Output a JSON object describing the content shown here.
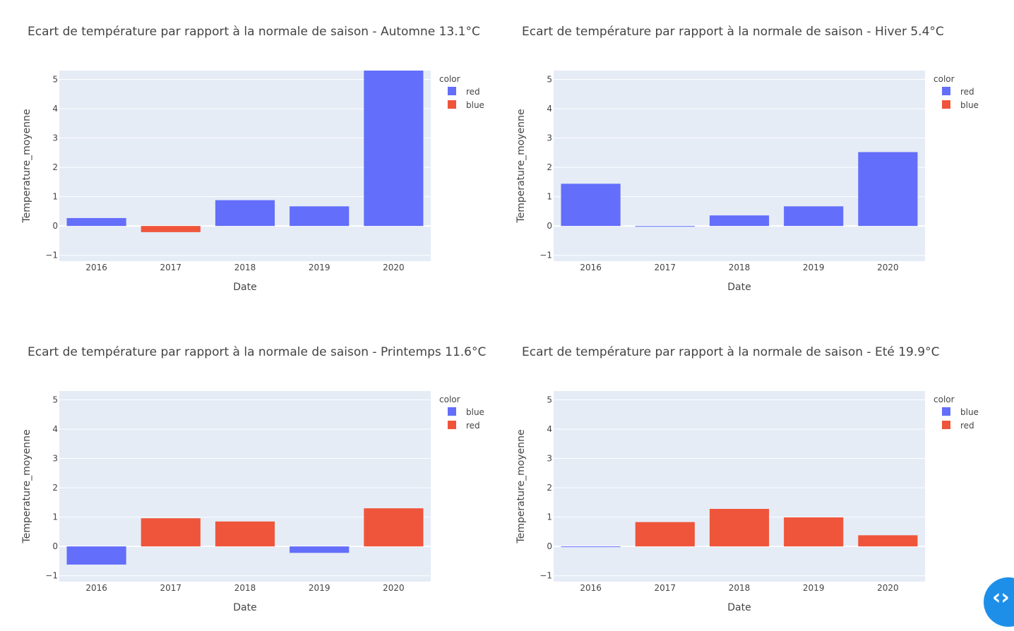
{
  "colors": {
    "plot_bg": "#e5ecf6",
    "grid": "#ffffff",
    "text": "#444444",
    "blue": "#636efa",
    "red": "#ef553b",
    "code_button": "#1e8fe8"
  },
  "chart_data": [
    {
      "type": "bar",
      "title": "Ecart de température par rapport à la normale de saison - Automne 13.1°C",
      "xlabel": "Date",
      "ylabel": "Temperature_moyenne",
      "categories": [
        "2016",
        "2017",
        "2018",
        "2019",
        "2020"
      ],
      "values": [
        0.27,
        -0.21,
        0.88,
        0.67,
        5.3
      ],
      "bar_colors": [
        "blue",
        "red",
        "blue",
        "blue",
        "blue"
      ],
      "ylim": [
        -1.2,
        5.3
      ],
      "yticks": [
        "−1",
        "0",
        "1",
        "2",
        "3",
        "4",
        "5"
      ],
      "legend_title": "color",
      "legend": [
        {
          "label": "red",
          "color": "blue"
        },
        {
          "label": "blue",
          "color": "red"
        }
      ],
      "legend_position": "top-right",
      "grid": true
    },
    {
      "type": "bar",
      "title": "Ecart de température par rapport à la normale de saison - Hiver 5.4°C",
      "xlabel": "Date",
      "ylabel": "Temperature_moyenne",
      "categories": [
        "2016",
        "2017",
        "2018",
        "2019",
        "2020"
      ],
      "values": [
        1.44,
        -0.02,
        0.36,
        0.67,
        2.52
      ],
      "bar_colors": [
        "blue",
        "blue",
        "blue",
        "blue",
        "blue"
      ],
      "ylim": [
        -1.2,
        5.3
      ],
      "yticks": [
        "−1",
        "0",
        "1",
        "2",
        "3",
        "4",
        "5"
      ],
      "legend_title": "color",
      "legend": [
        {
          "label": "red",
          "color": "blue"
        },
        {
          "label": "blue",
          "color": "red"
        }
      ],
      "legend_position": "top-right",
      "grid": true
    },
    {
      "type": "bar",
      "title": "Ecart de température par rapport à la normale de saison - Printemps 11.6°C",
      "xlabel": "Date",
      "ylabel": "Temperature_moyenne",
      "categories": [
        "2016",
        "2017",
        "2018",
        "2019",
        "2020"
      ],
      "values": [
        -0.62,
        0.96,
        0.85,
        -0.22,
        1.3
      ],
      "bar_colors": [
        "blue",
        "red",
        "red",
        "blue",
        "red"
      ],
      "ylim": [
        -1.2,
        5.3
      ],
      "yticks": [
        "−1",
        "0",
        "1",
        "2",
        "3",
        "4",
        "5"
      ],
      "legend_title": "color",
      "legend": [
        {
          "label": "blue",
          "color": "blue"
        },
        {
          "label": "red",
          "color": "red"
        }
      ],
      "legend_position": "top-right",
      "grid": true
    },
    {
      "type": "bar",
      "title": "Ecart de température par rapport à la normale de saison - Eté 19.9°C",
      "xlabel": "Date",
      "ylabel": "Temperature_moyenne",
      "categories": [
        "2016",
        "2017",
        "2018",
        "2019",
        "2020"
      ],
      "values": [
        -0.02,
        0.83,
        1.28,
        0.99,
        0.38
      ],
      "bar_colors": [
        "blue",
        "red",
        "red",
        "red",
        "red"
      ],
      "ylim": [
        -1.2,
        5.3
      ],
      "yticks": [
        "−1",
        "0",
        "1",
        "2",
        "3",
        "4",
        "5"
      ],
      "legend_title": "color",
      "legend": [
        {
          "label": "blue",
          "color": "blue"
        },
        {
          "label": "red",
          "color": "red"
        }
      ],
      "legend_position": "top-right",
      "grid": true
    }
  ],
  "code_button": {
    "icon": "code-chevrons-icon",
    "glyph": "‹›"
  }
}
